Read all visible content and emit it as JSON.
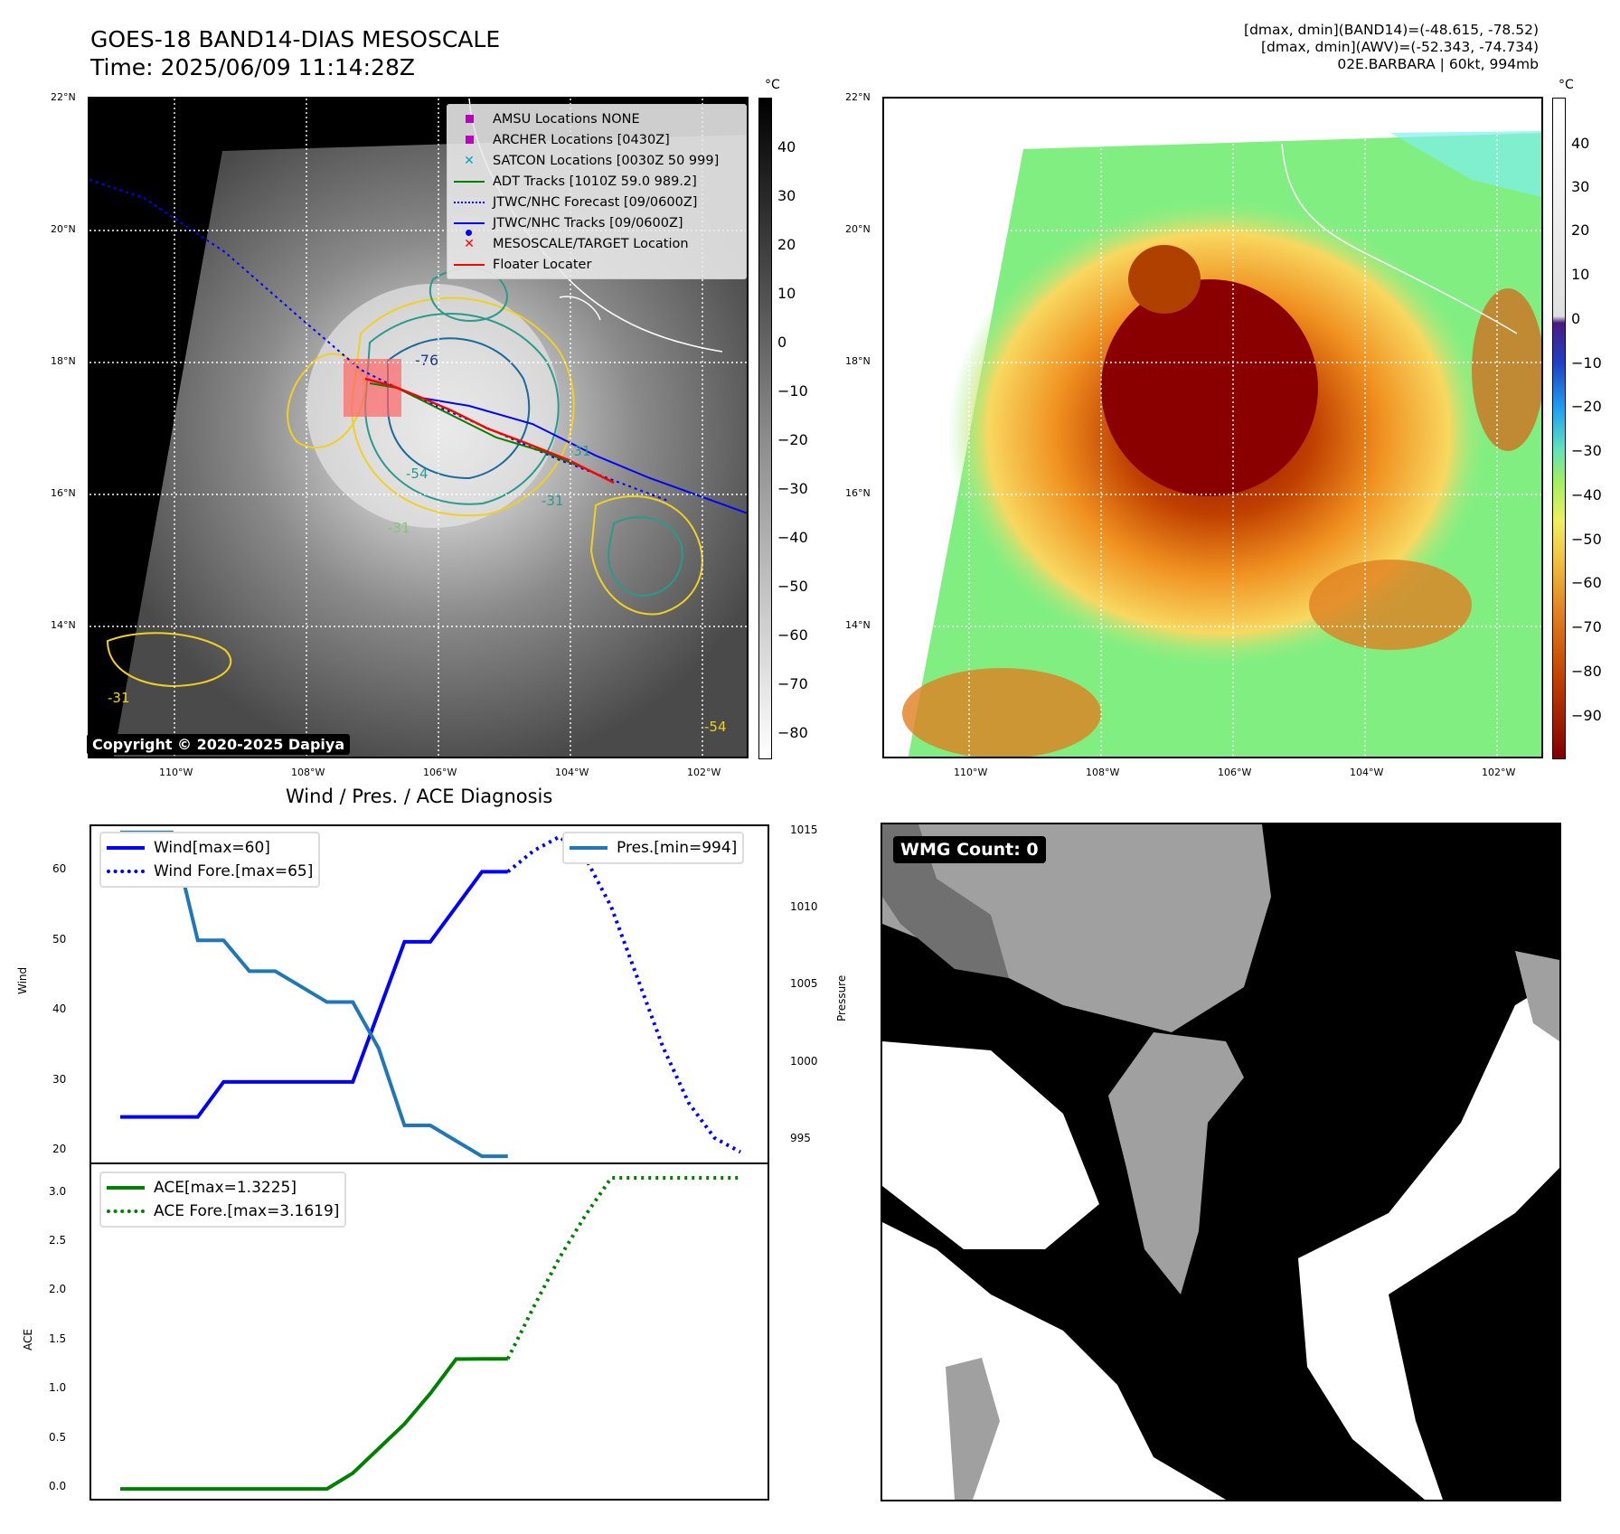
{
  "header": {
    "title_line1": "GOES-18 BAND14-DIAS MESOSCALE",
    "title_line2": "Time: 2025/06/09 11:14:28Z",
    "info_line1": "[dmax, dmin](BAND14)=(-48.615, -78.52)",
    "info_line2": "[dmax, dmin](AWV)=(-52.343, -74.734)",
    "info_line3": "02E.BARBARA | 60kt, 994mb"
  },
  "map_left": {
    "lat_labels": [
      "22°N",
      "20°N",
      "18°N",
      "16°N",
      "14°N"
    ],
    "lon_labels": [
      "110°W",
      "108°W",
      "106°W",
      "104°W",
      "102°W"
    ],
    "colorbar_unit": "°C",
    "colorbar_ticks": [
      "40",
      "30",
      "20",
      "10",
      "0",
      "−10",
      "−20",
      "−30",
      "−40",
      "−50",
      "−60",
      "−70",
      "−80"
    ],
    "contour_labels": [
      "-76",
      "-54",
      "-31",
      "-31",
      "-31",
      "-31",
      "-54"
    ],
    "copyright": "Copyright © 2020-2025 Dapiya",
    "legend": [
      {
        "label": "AMSU Locations NONE",
        "symbol": "square",
        "color": "#c000c0"
      },
      {
        "label": "ARCHER Locations [0430Z]",
        "symbol": "square",
        "color": "#c000c0"
      },
      {
        "label": "SATCON Locations [0030Z 50 999]",
        "symbol": "x",
        "color": "#00a8b8"
      },
      {
        "label": "ADT Tracks [1010Z 59.0 989.2]",
        "symbol": "line",
        "color": "#008000"
      },
      {
        "label": "JTWC/NHC Forecast [09/0600Z]",
        "symbol": "dotted",
        "color": "#0000ff"
      },
      {
        "label": "JTWC/NHC Tracks [09/0600Z]",
        "symbol": "line-dot",
        "color": "#0000ff"
      },
      {
        "label": "MESOSCALE/TARGET Location",
        "symbol": "x",
        "color": "#ff0000"
      },
      {
        "label": "Floater Locater",
        "symbol": "line",
        "color": "#ff0000"
      }
    ]
  },
  "map_right": {
    "lat_labels": [
      "22°N",
      "20°N",
      "18°N",
      "16°N",
      "14°N"
    ],
    "lon_labels": [
      "110°W",
      "108°W",
      "106°W",
      "104°W",
      "102°W"
    ],
    "colorbar_unit": "°C",
    "colorbar_ticks": [
      "40",
      "30",
      "20",
      "10",
      "0",
      "−10",
      "−20",
      "−30",
      "−40",
      "−50",
      "−60",
      "−70",
      "−80",
      "−90"
    ]
  },
  "chart_data": [
    {
      "type": "line",
      "title": "Wind / Pres. / ACE Diagnosis",
      "ylabel": "Wind",
      "ylabel_right": "Pressure",
      "ylim": [
        18.5,
        66.5
      ],
      "ylim_right": [
        993.6,
        1015.4
      ],
      "yticks": [
        20,
        30,
        40,
        50,
        60
      ],
      "yticks_right": [
        995,
        1000,
        1005,
        1010,
        1015
      ],
      "x": [
        0,
        1,
        2,
        3,
        4,
        5,
        6,
        7,
        8,
        9,
        10,
        11,
        12,
        13,
        14,
        15,
        16,
        17,
        18,
        19,
        20,
        21,
        22,
        23,
        24
      ],
      "series": [
        {
          "name": "Wind[max=60]",
          "color": "#0000ff",
          "style": "solid",
          "axis": "left",
          "x": [
            0,
            1,
            2,
            3,
            4,
            5,
            6,
            7,
            8,
            9,
            10,
            11,
            12,
            13,
            14,
            15
          ],
          "values": [
            25,
            25,
            25,
            25,
            30,
            30,
            30,
            30,
            30,
            30,
            40,
            50,
            50,
            55,
            60,
            60
          ]
        },
        {
          "name": "Wind Fore.[max=65]",
          "color": "#0000ff",
          "style": "dotted",
          "axis": "left",
          "x": [
            15,
            16,
            17,
            18,
            19,
            20,
            21,
            22,
            23,
            24
          ],
          "values": [
            60,
            63,
            65,
            62,
            55,
            45,
            35,
            27,
            22,
            20
          ]
        },
        {
          "name": "Pres.[min=994]",
          "color": "#1f77b4",
          "style": "solid",
          "axis": "right",
          "x": [
            0,
            1,
            2,
            3,
            4,
            5,
            6,
            7,
            8,
            9,
            10,
            11,
            12,
            13,
            14,
            15
          ],
          "values": [
            1015,
            1015,
            1015,
            1008,
            1008,
            1006,
            1006,
            1005,
            1004,
            1004,
            1001,
            996,
            996,
            995,
            994,
            994
          ]
        }
      ]
    },
    {
      "type": "line",
      "ylabel": "ACE",
      "ylim": [
        -0.1,
        3.3
      ],
      "yticks": [
        0.0,
        0.5,
        1.0,
        1.5,
        2.0,
        2.5,
        3.0
      ],
      "series": [
        {
          "name": "ACE[max=1.3225]",
          "color": "#008000",
          "style": "solid",
          "x": [
            0,
            1,
            2,
            3,
            4,
            5,
            6,
            7,
            8,
            9,
            10,
            11,
            12,
            13,
            14,
            15
          ],
          "values": [
            0,
            0,
            0,
            0,
            0,
            0,
            0,
            0,
            0,
            0.16,
            0.41,
            0.66,
            0.97,
            1.32,
            1.3225,
            1.3225
          ]
        },
        {
          "name": "ACE Fore.[max=3.1619]",
          "color": "#008000",
          "style": "dotted",
          "x": [
            15,
            16,
            17,
            18,
            19,
            20,
            21,
            22,
            23,
            24
          ],
          "values": [
            1.3225,
            1.85,
            2.35,
            2.78,
            3.1619,
            3.1619,
            3.1619,
            3.1619,
            3.1619,
            3.1619
          ]
        }
      ]
    }
  ],
  "wmg": {
    "label": "WMG Count: 0",
    "colors": {
      "background": "#000000",
      "gray": "#a0a0a0",
      "dark_gray": "#707070",
      "white": "#ffffff"
    }
  }
}
